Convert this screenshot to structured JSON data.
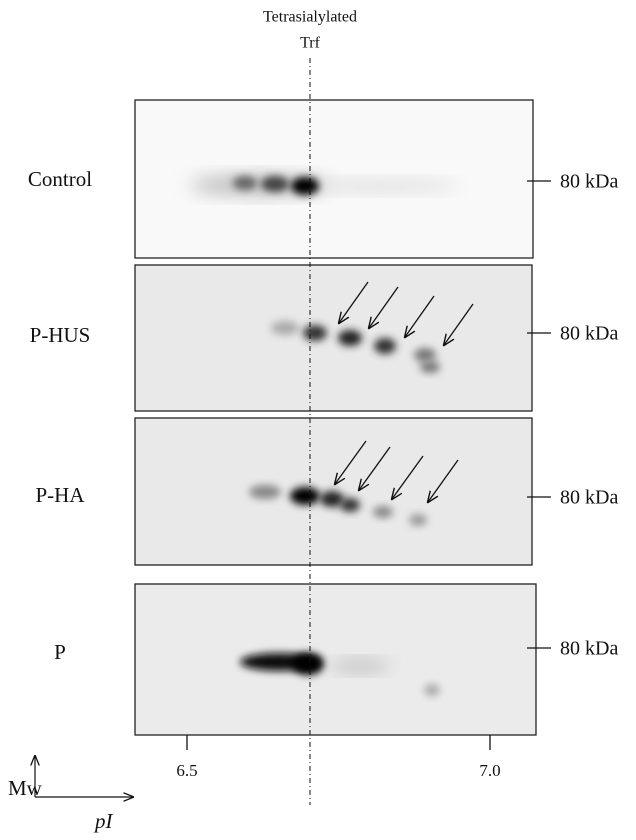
{
  "header": {
    "line1": "Tetrasialylated",
    "line2": "Trf"
  },
  "panels": [
    {
      "label": "Control",
      "marker": "80 kDa"
    },
    {
      "label": "P-HUS",
      "marker": "80 kDa"
    },
    {
      "label": "P-HA",
      "marker": "80 kDa"
    },
    {
      "label": "P",
      "marker": "80 kDa"
    }
  ],
  "axis": {
    "ticks": [
      "6.5",
      "7.0"
    ],
    "y_label": "Mw",
    "x_label": "pI"
  }
}
